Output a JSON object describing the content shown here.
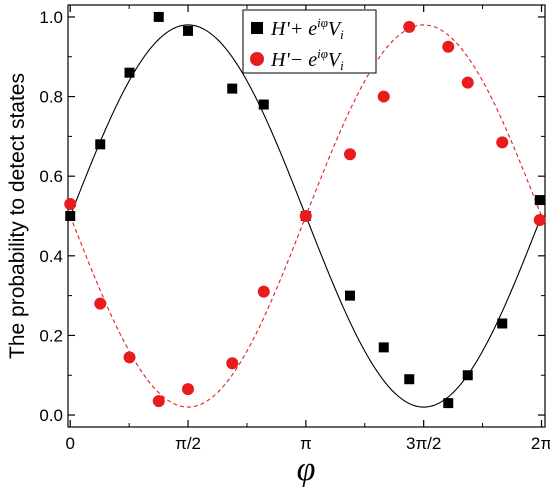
{
  "chart_data": {
    "type": "scatter",
    "title": "",
    "xlabel": "φ",
    "ylabel": "The probability to detect states",
    "xlim": [
      -0.03,
      6.33
    ],
    "ylim": [
      -0.03,
      1.03
    ],
    "x_ticks": [
      {
        "value": 0,
        "label": "0"
      },
      {
        "value": 1.5708,
        "label": "π/2"
      },
      {
        "value": 3.1416,
        "label": "π"
      },
      {
        "value": 4.7124,
        "label": "3π/2"
      },
      {
        "value": 6.2832,
        "label": "2π"
      }
    ],
    "y_ticks": [
      {
        "value": 0.0,
        "label": "0.0"
      },
      {
        "value": 0.2,
        "label": "0.2"
      },
      {
        "value": 0.4,
        "label": "0.4"
      },
      {
        "value": 0.6,
        "label": "0.6"
      },
      {
        "value": 0.8,
        "label": "0.8"
      },
      {
        "value": 1.0,
        "label": "1.0"
      }
    ],
    "grid": false,
    "legend_position": "top-right",
    "series": [
      {
        "name": "H' + e^{iφ}V_i",
        "marker": "square",
        "color": "#000000",
        "points": [
          [
            0.0,
            0.5
          ],
          [
            0.4,
            0.68
          ],
          [
            0.79,
            0.86
          ],
          [
            1.18,
            1.0
          ],
          [
            1.57,
            0.965
          ],
          [
            2.16,
            0.82
          ],
          [
            2.58,
            0.78
          ],
          [
            3.14,
            0.5
          ],
          [
            3.73,
            0.3
          ],
          [
            4.18,
            0.17
          ],
          [
            4.52,
            0.09
          ],
          [
            5.04,
            0.03
          ],
          [
            5.3,
            0.1
          ],
          [
            5.76,
            0.23
          ],
          [
            6.26,
            0.54
          ]
        ],
        "fit_style": "solid"
      },
      {
        "name": "H' − e^{iφ}V_i",
        "marker": "circle",
        "color": "#e81c1c",
        "points": [
          [
            0.0,
            0.53
          ],
          [
            0.4,
            0.28
          ],
          [
            0.79,
            0.145
          ],
          [
            1.18,
            0.035
          ],
          [
            1.57,
            0.065
          ],
          [
            2.16,
            0.13
          ],
          [
            2.58,
            0.31
          ],
          [
            3.14,
            0.5
          ],
          [
            3.73,
            0.655
          ],
          [
            4.18,
            0.8
          ],
          [
            4.52,
            0.975
          ],
          [
            5.04,
            0.925
          ],
          [
            5.3,
            0.835
          ],
          [
            5.76,
            0.685
          ],
          [
            6.26,
            0.49
          ]
        ],
        "fit_style": "dashed"
      }
    ]
  }
}
